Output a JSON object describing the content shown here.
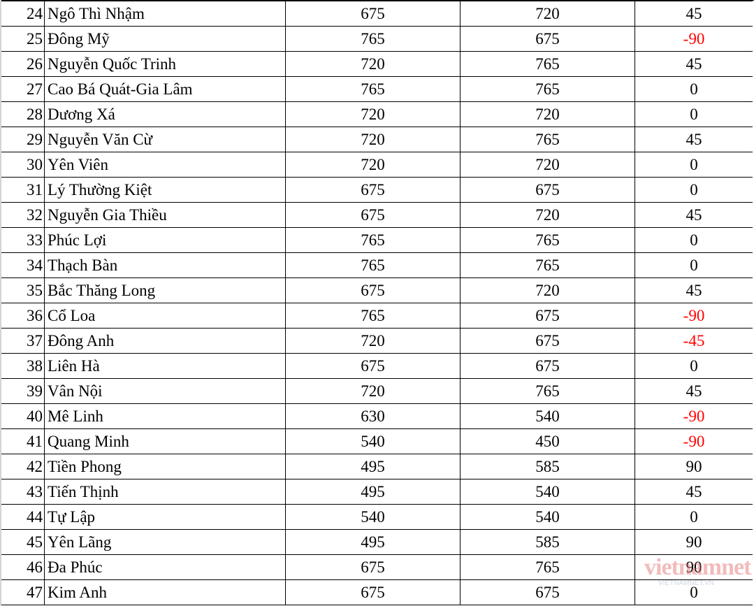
{
  "rows": [
    {
      "no": "24",
      "name": "Ngô Thì Nhậm",
      "a": "675",
      "b": "720",
      "diff": "45"
    },
    {
      "no": "25",
      "name": "Đông Mỹ",
      "a": "765",
      "b": "675",
      "diff": "-90"
    },
    {
      "no": "26",
      "name": "Nguyễn Quốc Trinh",
      "a": "720",
      "b": "765",
      "diff": "45"
    },
    {
      "no": "27",
      "name": "Cao Bá Quát-Gia Lâm",
      "a": "765",
      "b": "765",
      "diff": "0"
    },
    {
      "no": "28",
      "name": "Dương Xá",
      "a": "720",
      "b": "720",
      "diff": "0"
    },
    {
      "no": "29",
      "name": "Nguyễn Văn Cừ",
      "a": "720",
      "b": "765",
      "diff": "45"
    },
    {
      "no": "30",
      "name": "Yên Viên",
      "a": "720",
      "b": "720",
      "diff": "0"
    },
    {
      "no": "31",
      "name": "Lý Thường Kiệt",
      "a": "675",
      "b": "675",
      "diff": "0"
    },
    {
      "no": "32",
      "name": "Nguyễn Gia Thiều",
      "a": "675",
      "b": "720",
      "diff": "45"
    },
    {
      "no": "33",
      "name": "Phúc Lợi",
      "a": "765",
      "b": "765",
      "diff": "0"
    },
    {
      "no": "34",
      "name": "Thạch Bàn",
      "a": "765",
      "b": "765",
      "diff": "0"
    },
    {
      "no": "35",
      "name": "Bắc Thăng Long",
      "a": "675",
      "b": "720",
      "diff": "45"
    },
    {
      "no": "36",
      "name": "Cổ Loa",
      "a": "765",
      "b": "675",
      "diff": "-90"
    },
    {
      "no": "37",
      "name": "Đông Anh",
      "a": "720",
      "b": "675",
      "diff": "-45"
    },
    {
      "no": "38",
      "name": "Liên Hà",
      "a": "675",
      "b": "675",
      "diff": "0"
    },
    {
      "no": "39",
      "name": "Vân Nội",
      "a": "720",
      "b": "765",
      "diff": "45"
    },
    {
      "no": "40",
      "name": "Mê Linh",
      "a": "630",
      "b": "540",
      "diff": "-90"
    },
    {
      "no": "41",
      "name": "Quang Minh",
      "a": "540",
      "b": "450",
      "diff": "-90"
    },
    {
      "no": "42",
      "name": "Tiền Phong",
      "a": "495",
      "b": "585",
      "diff": "90"
    },
    {
      "no": "43",
      "name": "Tiến Thịnh",
      "a": "495",
      "b": "540",
      "diff": "45"
    },
    {
      "no": "44",
      "name": "Tự Lập",
      "a": "540",
      "b": "540",
      "diff": "0"
    },
    {
      "no": "45",
      "name": "Yên Lãng",
      "a": "495",
      "b": "585",
      "diff": "90"
    },
    {
      "no": "46",
      "name": "Đa Phúc",
      "a": "675",
      "b": "765",
      "diff": "90"
    },
    {
      "no": "47",
      "name": "Kim Anh",
      "a": "675",
      "b": "675",
      "diff": "0"
    }
  ],
  "colors": {
    "negative": "#ff0000",
    "text": "#000000",
    "grid": "#000000"
  },
  "watermark": {
    "logo_text": "vietnamnet",
    "url_text": "VIETNAMNET.VN"
  }
}
